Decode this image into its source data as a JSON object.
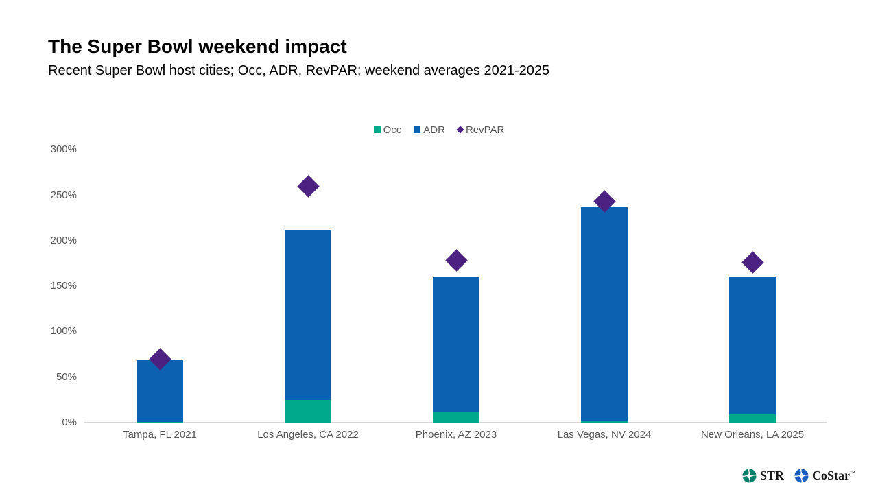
{
  "header": {
    "title": "The Super Bowl weekend impact",
    "subtitle": "Recent Super Bowl host cities; Occ, ADR, RevPAR; weekend averages 2021-2025"
  },
  "chart_data": {
    "type": "bar",
    "subtype": "stacked-columns-with-diamond-markers",
    "title": "The Super Bowl weekend impact",
    "categories": [
      "Tampa, FL 2021",
      "Los Angeles, CA 2022",
      "Phoenix, AZ 2023",
      "Las Vegas, NV 2024",
      "New Orleans, LA 2025"
    ],
    "series": [
      {
        "name": "Occ",
        "render": "bar-stack",
        "color": "#00A98C",
        "values": [
          1,
          25,
          12,
          2,
          9
        ]
      },
      {
        "name": "ADR",
        "render": "bar-stack",
        "color": "#0B62B0",
        "values": [
          68,
          187,
          148,
          235,
          152
        ]
      },
      {
        "name": "RevPAR",
        "render": "diamond-marker",
        "color": "#4B2182",
        "values": [
          70,
          260,
          178,
          243,
          176
        ]
      }
    ],
    "xlabel": "",
    "ylabel": "",
    "ylim": [
      0,
      300
    ],
    "y_tick_step": 50,
    "y_tick_labels": [
      "0%",
      "50%",
      "100%",
      "150%",
      "200%",
      "250%",
      "300%"
    ],
    "value_format": "percent",
    "grid": false,
    "legend_position": "top-center"
  },
  "footer": {
    "str_label": "STR",
    "costar_label": "CoStar",
    "costar_tm": "™",
    "str_icon_color": "#00806B",
    "costar_icon_color": "#1B5FBE"
  }
}
